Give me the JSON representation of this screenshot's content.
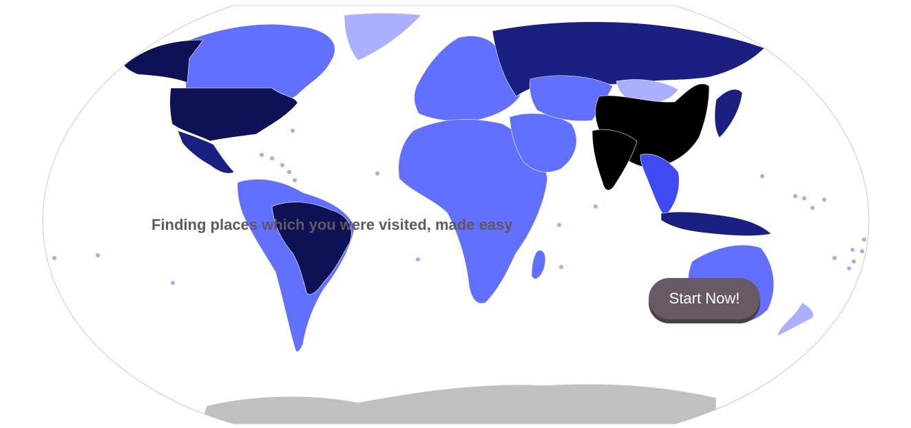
{
  "hero": {
    "tagline": "Finding places which you were visited, made easy",
    "cta_label": "Start Now!"
  },
  "colors": {
    "level_1": "#aab0ff",
    "level_2": "#6270ff",
    "level_3": "#3f4bf2",
    "level_4": "#2a33c0",
    "level_5": "#1a1f80",
    "level_6": "#0e1255",
    "level_max": "#000000",
    "antarctica": "#c0c0c0",
    "outline": "#bdbdbd",
    "tagline": "#62565f",
    "cta_background": "#675a64"
  },
  "map_regions": [
    {
      "id": "north-america",
      "shade": "level_2"
    },
    {
      "id": "alaska",
      "shade": "level_6"
    },
    {
      "id": "usa",
      "shade": "level_6"
    },
    {
      "id": "mexico",
      "shade": "level_5"
    },
    {
      "id": "greenland",
      "shade": "level_1"
    },
    {
      "id": "south-america",
      "shade": "level_2"
    },
    {
      "id": "brazil",
      "shade": "level_6"
    },
    {
      "id": "europe",
      "shade": "level_2"
    },
    {
      "id": "russia",
      "shade": "level_5"
    },
    {
      "id": "africa",
      "shade": "level_2"
    },
    {
      "id": "middle-east",
      "shade": "level_2"
    },
    {
      "id": "central-asia",
      "shade": "level_2"
    },
    {
      "id": "mongolia",
      "shade": "level_1"
    },
    {
      "id": "china",
      "shade": "level_max"
    },
    {
      "id": "india",
      "shade": "level_max"
    },
    {
      "id": "southeast-asia",
      "shade": "level_3"
    },
    {
      "id": "japan",
      "shade": "level_5"
    },
    {
      "id": "indonesia",
      "shade": "level_5"
    },
    {
      "id": "australia",
      "shade": "level_2"
    },
    {
      "id": "new-zealand",
      "shade": "level_1"
    },
    {
      "id": "antarctica",
      "shade": "antarctica"
    }
  ]
}
